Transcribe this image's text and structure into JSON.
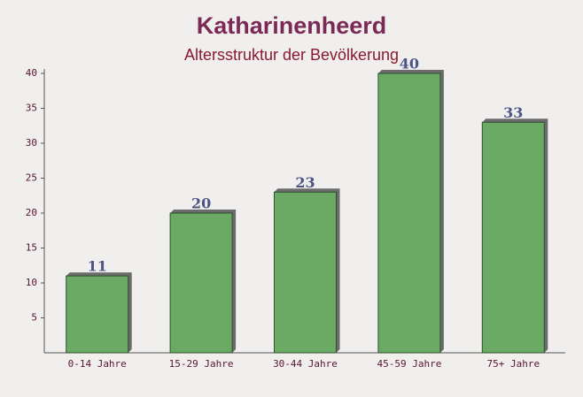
{
  "chart_data": {
    "type": "bar",
    "title": "Katharinenheerd",
    "subtitle": "Altersstruktur der Bevölkerung",
    "categories": [
      "0-14 Jahre",
      "15-29 Jahre",
      "30-44 Jahre",
      "45-59 Jahre",
      "75+ Jahre"
    ],
    "values": [
      11,
      20,
      23,
      40,
      33
    ],
    "color": "#6aaa64",
    "ylim": [
      0,
      40
    ],
    "yticks": [
      5,
      10,
      15,
      20,
      25,
      30,
      35,
      40
    ],
    "grid": false
  }
}
